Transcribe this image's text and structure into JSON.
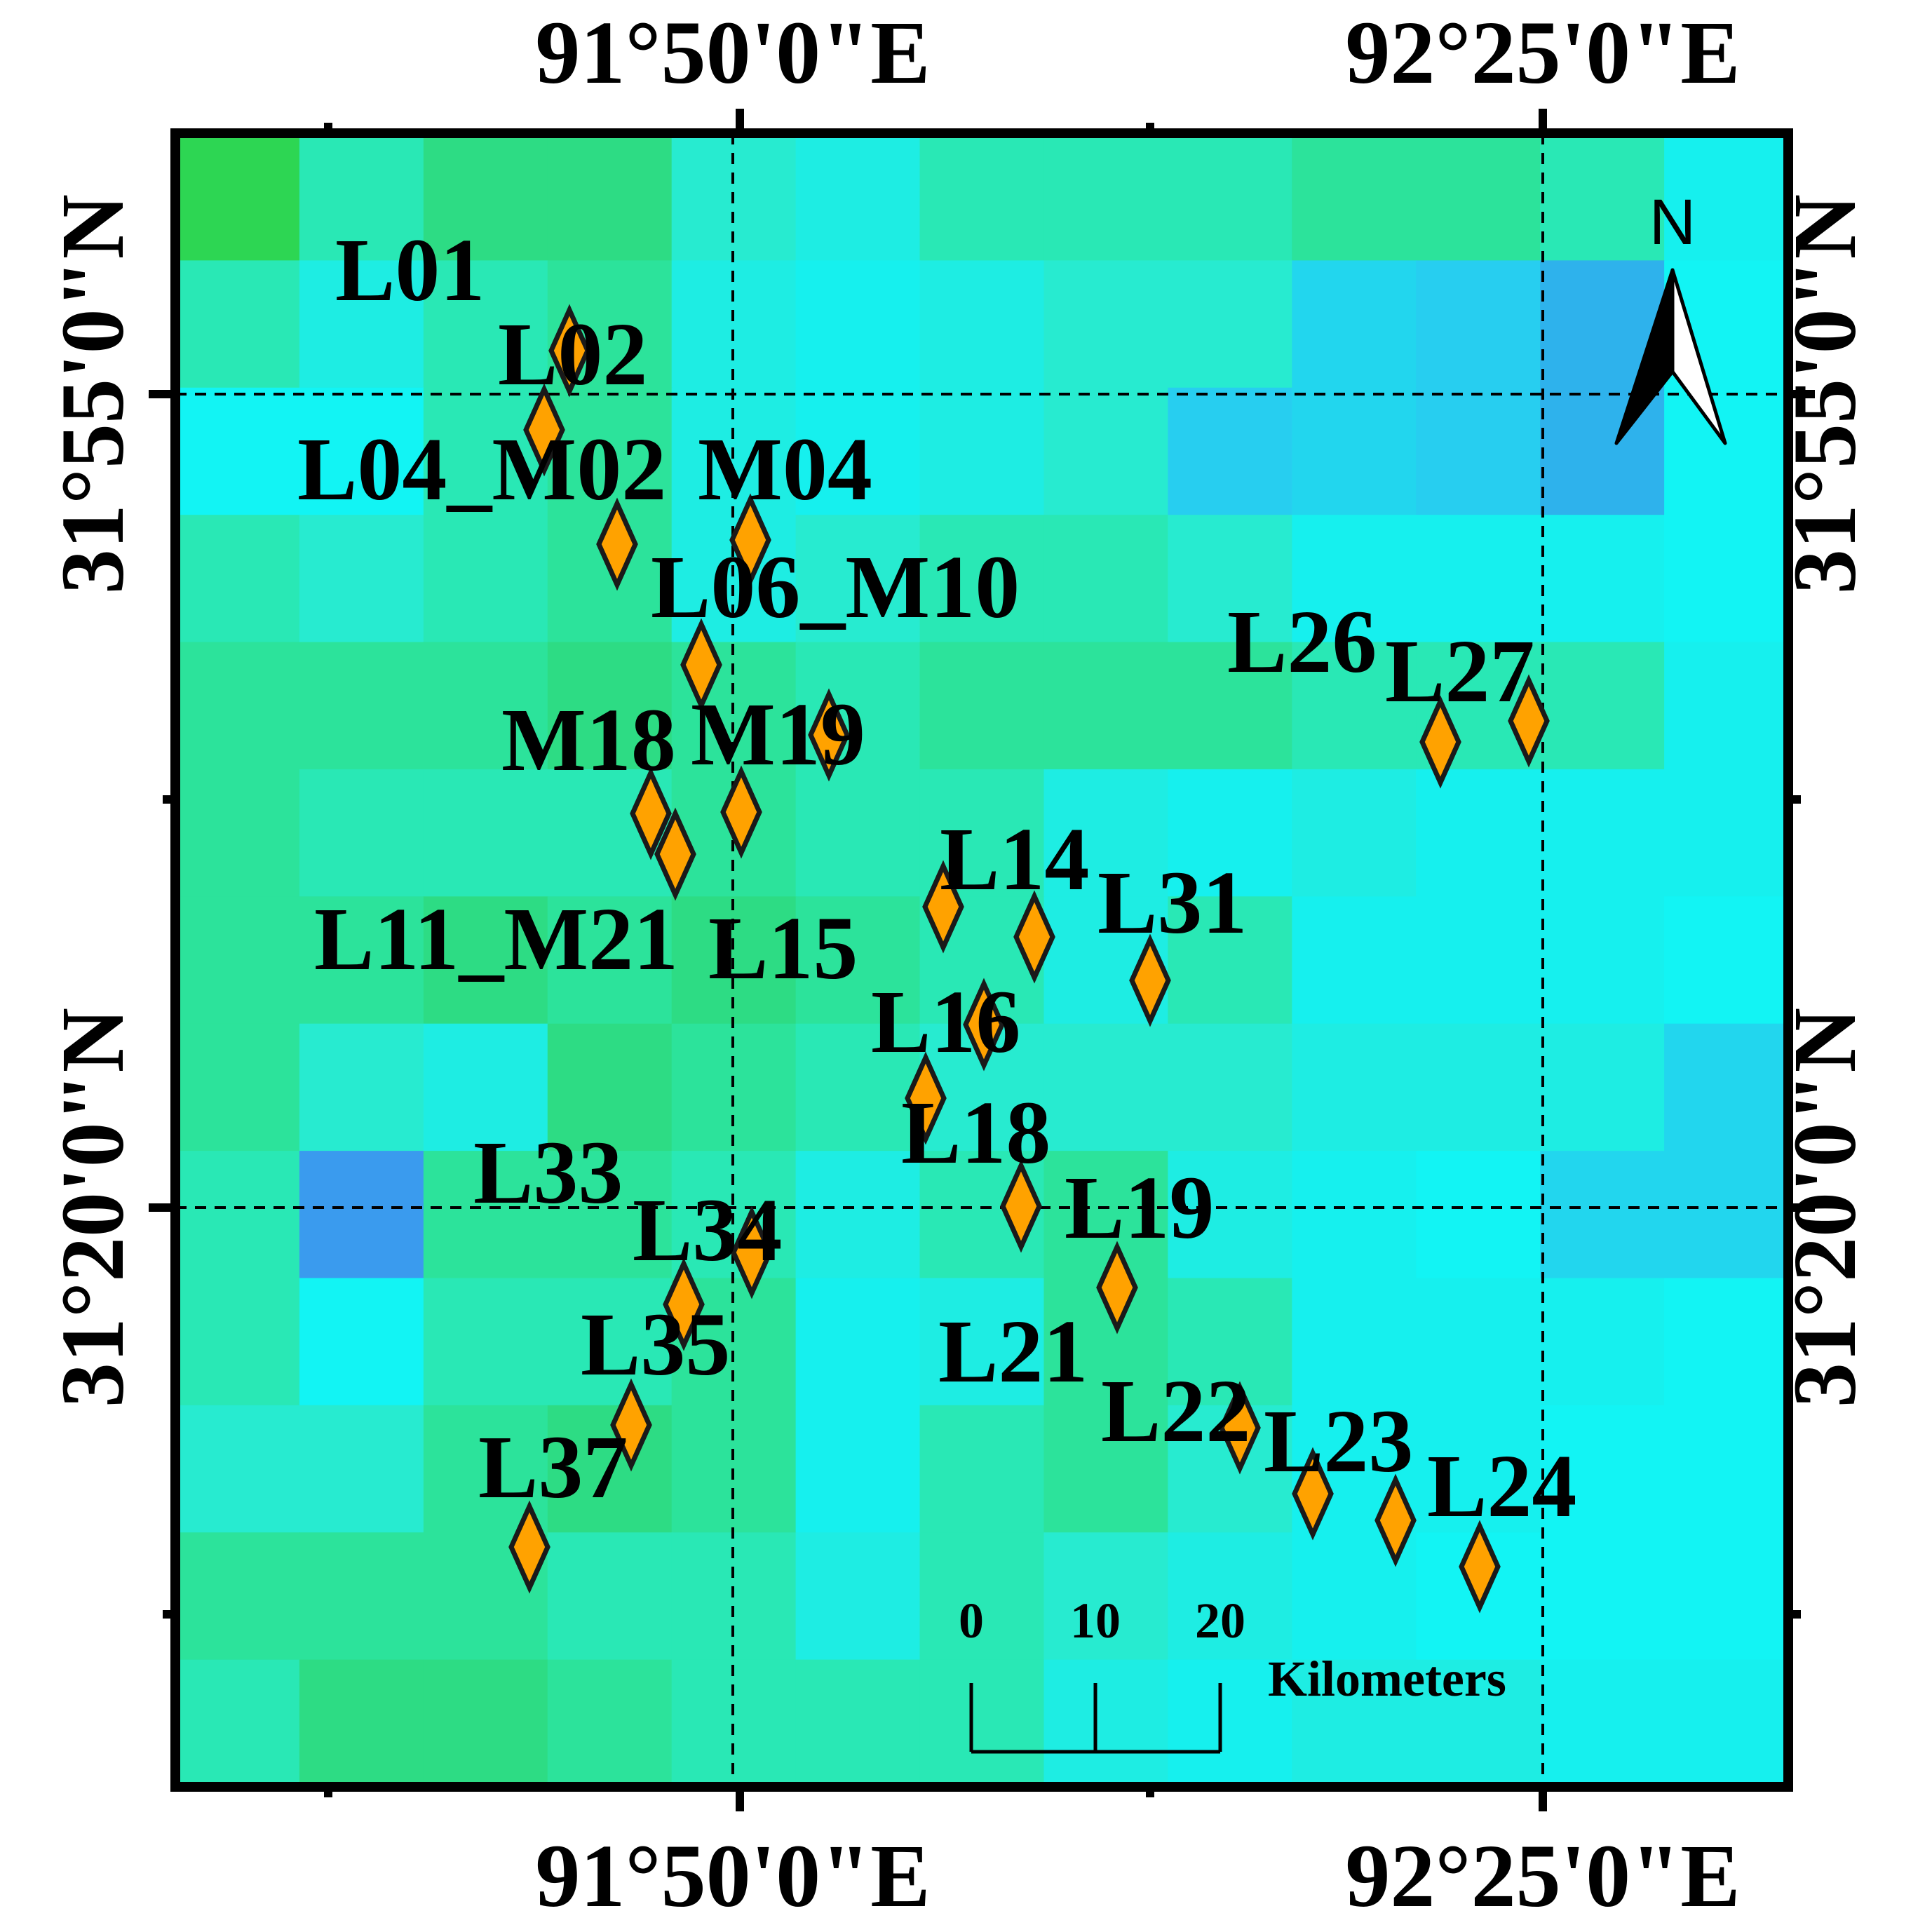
{
  "map": {
    "top_labels": [
      "91°50'0\"E",
      "92°25'0\"E"
    ],
    "bottom_labels": [
      "91°50'0\"E",
      "92°25'0\"E"
    ],
    "left_labels": [
      "31°55'0\"N",
      "31°20'0\"N"
    ],
    "right_labels": [
      "31°55'0\"N",
      "31°20'0\"N"
    ]
  },
  "raster": {
    "colors": {
      "a": "#2dd653",
      "b": "#2ddc84",
      "c": "#2ce39b",
      "d": "#29e8b5",
      "e": "#27ebd0",
      "f": "#1eede3",
      "g": "#16f0ee",
      "h": "#12f4f4",
      "i": "#22d6ee",
      "j": "#27cef0",
      "k": "#2eb2ec",
      "l": "#3a9bee"
    },
    "rows": [
      "adbbefdddccdg",
      "dfdcfgfeeijkh",
      "hhdcfgfejijkh",
      "dedcfeddegggh",
      "cccbcdcccdddg",
      "cdddcddfgfggg",
      "ccbcbcdfdgggh",
      "cefbcdeeefffi",
      "dlccdfdcfghii",
      "dhddcgfcdgggh",
      "eecbcgdcegghh",
      "cccddfdefghhh",
      "dbbcdddfgffgg"
    ]
  },
  "sites": [
    {
      "name": "L01"
    },
    {
      "name": "L02"
    },
    {
      "name": "L04_M02"
    },
    {
      "name": "M04"
    },
    {
      "name": "L06_M10"
    },
    {
      "name": "M18"
    },
    {
      "name": "M19"
    },
    {
      "name": "L11_M21"
    },
    {
      "name": "L15"
    },
    {
      "name": "L14"
    },
    {
      "name": "L31"
    },
    {
      "name": "L16"
    },
    {
      "name": "L18"
    },
    {
      "name": "L26"
    },
    {
      "name": "L27"
    },
    {
      "name": "L33"
    },
    {
      "name": "L34"
    },
    {
      "name": "L19"
    },
    {
      "name": "L35"
    },
    {
      "name": "L21"
    },
    {
      "name": "L22"
    },
    {
      "name": "L23"
    },
    {
      "name": "L24"
    },
    {
      "name": "L37"
    }
  ],
  "marker_color": "#ffa200",
  "north_arrow": {
    "label": "N"
  },
  "scale_bar": {
    "ticks": [
      "0",
      "10",
      "20"
    ],
    "unit": "Kilometers"
  }
}
